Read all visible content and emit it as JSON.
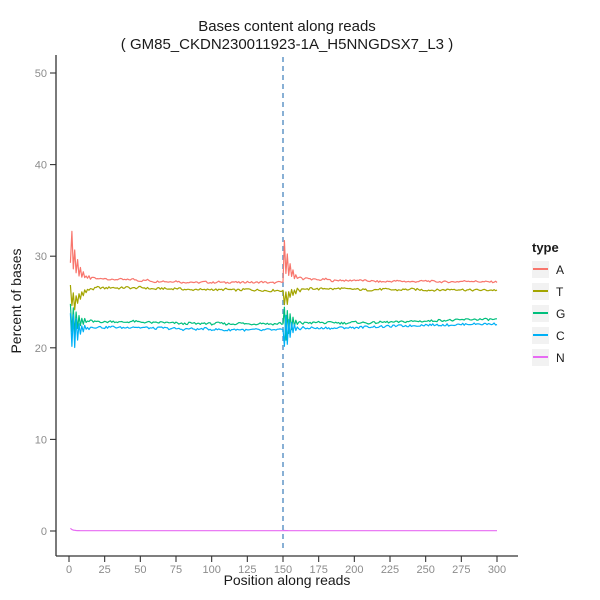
{
  "chart_data": {
    "type": "line",
    "title": "Bases content along reads",
    "subtitle": "( GM85_CKDN230011923-1A_H5NNGDSX7_L3 )",
    "xlabel": "Position along reads",
    "ylabel": "Percent of bases",
    "xlim": [
      0,
      300
    ],
    "ylim": [
      0,
      50
    ],
    "x_ticks": [
      0,
      25,
      50,
      75,
      100,
      125,
      150,
      175,
      200,
      225,
      250,
      275,
      300
    ],
    "y_ticks": [
      0,
      10,
      20,
      30,
      40,
      50
    ],
    "grid": false,
    "legend_title": "type",
    "legend_position": "right",
    "axis_color": "#333333",
    "tick_label_color": "#8C8C8C",
    "vline": {
      "x": 150,
      "style": "dashed",
      "color": "#74A3CE"
    },
    "series": [
      {
        "name": "A",
        "color": "#F8766D",
        "noise": 0.1,
        "points": [
          [
            1,
            29.2
          ],
          [
            2,
            32.8
          ],
          [
            3,
            28.6
          ],
          [
            4,
            30.7
          ],
          [
            5,
            28.2
          ],
          [
            6,
            29.6
          ],
          [
            7,
            27.9
          ],
          [
            8,
            28.8
          ],
          [
            9,
            27.7
          ],
          [
            10,
            28.2
          ],
          [
            11,
            27.6
          ],
          [
            12,
            27.9
          ],
          [
            13,
            27.5
          ],
          [
            14,
            27.8
          ],
          [
            15,
            27.5
          ],
          [
            17,
            27.7
          ],
          [
            20,
            27.5
          ],
          [
            25,
            27.6
          ],
          [
            30,
            27.4
          ],
          [
            35,
            27.5
          ],
          [
            40,
            27.4
          ],
          [
            45,
            27.5
          ],
          [
            50,
            27.3
          ],
          [
            55,
            27.4
          ],
          [
            60,
            27.2
          ],
          [
            65,
            27.3
          ],
          [
            70,
            27.2
          ],
          [
            75,
            27.3
          ],
          [
            80,
            27.1
          ],
          [
            85,
            27.2
          ],
          [
            90,
            27.1
          ],
          [
            95,
            27.2
          ],
          [
            100,
            27.1
          ],
          [
            105,
            27.2
          ],
          [
            110,
            27.1
          ],
          [
            115,
            27.2
          ],
          [
            120,
            27.1
          ],
          [
            125,
            27.2
          ],
          [
            130,
            27.1
          ],
          [
            135,
            27.2
          ],
          [
            140,
            27.1
          ],
          [
            145,
            27.1
          ],
          [
            148,
            27.2
          ],
          [
            150,
            27.1
          ],
          [
            151,
            31.8
          ],
          [
            152,
            28.2
          ],
          [
            153,
            30.2
          ],
          [
            154,
            27.9
          ],
          [
            155,
            29.1
          ],
          [
            156,
            27.7
          ],
          [
            157,
            28.5
          ],
          [
            158,
            27.6
          ],
          [
            159,
            28.0
          ],
          [
            160,
            27.5
          ],
          [
            162,
            27.8
          ],
          [
            164,
            27.5
          ],
          [
            166,
            27.6
          ],
          [
            170,
            27.5
          ],
          [
            175,
            27.4
          ],
          [
            180,
            27.5
          ],
          [
            185,
            27.3
          ],
          [
            190,
            27.4
          ],
          [
            195,
            27.3
          ],
          [
            200,
            27.4
          ],
          [
            210,
            27.3
          ],
          [
            220,
            27.2
          ],
          [
            230,
            27.3
          ],
          [
            240,
            27.2
          ],
          [
            250,
            27.3
          ],
          [
            260,
            27.2
          ],
          [
            270,
            27.2
          ],
          [
            280,
            27.3
          ],
          [
            290,
            27.2
          ],
          [
            300,
            27.2
          ]
        ]
      },
      {
        "name": "T",
        "color": "#A3A500",
        "noise": 0.12,
        "points": [
          [
            1,
            26.8
          ],
          [
            2,
            24.6
          ],
          [
            3,
            26.0
          ],
          [
            4,
            24.2
          ],
          [
            5,
            25.6
          ],
          [
            6,
            24.8
          ],
          [
            7,
            25.9
          ],
          [
            8,
            25.3
          ],
          [
            9,
            26.1
          ],
          [
            10,
            25.8
          ],
          [
            11,
            26.3
          ],
          [
            12,
            26.0
          ],
          [
            13,
            26.4
          ],
          [
            14,
            26.2
          ],
          [
            15,
            26.5
          ],
          [
            17,
            26.4
          ],
          [
            20,
            26.6
          ],
          [
            25,
            26.5
          ],
          [
            30,
            26.6
          ],
          [
            35,
            26.5
          ],
          [
            40,
            26.6
          ],
          [
            45,
            26.5
          ],
          [
            50,
            26.6
          ],
          [
            55,
            26.5
          ],
          [
            60,
            26.4
          ],
          [
            65,
            26.5
          ],
          [
            70,
            26.4
          ],
          [
            75,
            26.5
          ],
          [
            80,
            26.4
          ],
          [
            85,
            26.3
          ],
          [
            90,
            26.4
          ],
          [
            95,
            26.3
          ],
          [
            100,
            26.4
          ],
          [
            105,
            26.3
          ],
          [
            110,
            26.4
          ],
          [
            115,
            26.3
          ],
          [
            120,
            26.3
          ],
          [
            125,
            26.4
          ],
          [
            130,
            26.3
          ],
          [
            135,
            26.3
          ],
          [
            140,
            26.2
          ],
          [
            145,
            26.3
          ],
          [
            148,
            26.2
          ],
          [
            150,
            26.3
          ],
          [
            151,
            24.6
          ],
          [
            152,
            26.1
          ],
          [
            153,
            24.8
          ],
          [
            154,
            26.2
          ],
          [
            155,
            25.4
          ],
          [
            156,
            26.4
          ],
          [
            157,
            25.8
          ],
          [
            158,
            26.3
          ],
          [
            159,
            26.0
          ],
          [
            160,
            26.5
          ],
          [
            162,
            26.2
          ],
          [
            164,
            26.5
          ],
          [
            166,
            26.3
          ],
          [
            170,
            26.5
          ],
          [
            175,
            26.4
          ],
          [
            180,
            26.5
          ],
          [
            185,
            26.4
          ],
          [
            190,
            26.5
          ],
          [
            195,
            26.4
          ],
          [
            200,
            26.4
          ],
          [
            210,
            26.3
          ],
          [
            220,
            26.4
          ],
          [
            230,
            26.3
          ],
          [
            240,
            26.4
          ],
          [
            250,
            26.3
          ],
          [
            260,
            26.3
          ],
          [
            270,
            26.4
          ],
          [
            280,
            26.3
          ],
          [
            290,
            26.3
          ],
          [
            300,
            26.3
          ]
        ]
      },
      {
        "name": "G",
        "color": "#00BF7D",
        "noise": 0.12,
        "points": [
          [
            1,
            24.9
          ],
          [
            2,
            21.8
          ],
          [
            3,
            24.4
          ],
          [
            4,
            21.4
          ],
          [
            5,
            23.9
          ],
          [
            6,
            22.1
          ],
          [
            7,
            23.5
          ],
          [
            8,
            22.4
          ],
          [
            9,
            23.2
          ],
          [
            10,
            22.6
          ],
          [
            11,
            23.1
          ],
          [
            12,
            22.7
          ],
          [
            13,
            23.0
          ],
          [
            14,
            22.8
          ],
          [
            15,
            23.0
          ],
          [
            17,
            22.8
          ],
          [
            20,
            22.9
          ],
          [
            25,
            22.8
          ],
          [
            30,
            22.9
          ],
          [
            35,
            22.8
          ],
          [
            40,
            22.8
          ],
          [
            45,
            22.9
          ],
          [
            50,
            22.8
          ],
          [
            55,
            22.8
          ],
          [
            60,
            22.7
          ],
          [
            65,
            22.8
          ],
          [
            70,
            22.7
          ],
          [
            75,
            22.7
          ],
          [
            80,
            22.6
          ],
          [
            85,
            22.7
          ],
          [
            90,
            22.6
          ],
          [
            95,
            22.7
          ],
          [
            100,
            22.6
          ],
          [
            105,
            22.7
          ],
          [
            110,
            22.6
          ],
          [
            115,
            22.6
          ],
          [
            120,
            22.7
          ],
          [
            125,
            22.6
          ],
          [
            130,
            22.6
          ],
          [
            135,
            22.7
          ],
          [
            140,
            22.6
          ],
          [
            145,
            22.6
          ],
          [
            148,
            22.7
          ],
          [
            150,
            22.6
          ],
          [
            151,
            24.4
          ],
          [
            152,
            20.9
          ],
          [
            153,
            24.1
          ],
          [
            154,
            21.5
          ],
          [
            155,
            23.6
          ],
          [
            156,
            22.0
          ],
          [
            157,
            23.3
          ],
          [
            158,
            22.3
          ],
          [
            159,
            23.0
          ],
          [
            160,
            22.5
          ],
          [
            162,
            22.9
          ],
          [
            164,
            22.6
          ],
          [
            166,
            22.8
          ],
          [
            170,
            22.7
          ],
          [
            175,
            22.8
          ],
          [
            180,
            22.7
          ],
          [
            185,
            22.8
          ],
          [
            190,
            22.7
          ],
          [
            195,
            22.7
          ],
          [
            200,
            22.8
          ],
          [
            210,
            22.7
          ],
          [
            220,
            22.8
          ],
          [
            230,
            22.8
          ],
          [
            240,
            22.9
          ],
          [
            250,
            22.9
          ],
          [
            260,
            23.0
          ],
          [
            270,
            23.0
          ],
          [
            280,
            23.1
          ],
          [
            290,
            23.1
          ],
          [
            300,
            23.1
          ]
        ]
      },
      {
        "name": "C",
        "color": "#00B0F6",
        "noise": 0.12,
        "points": [
          [
            1,
            23.8
          ],
          [
            2,
            20.2
          ],
          [
            3,
            23.5
          ],
          [
            4,
            20.0
          ],
          [
            5,
            23.1
          ],
          [
            6,
            20.8
          ],
          [
            7,
            22.7
          ],
          [
            8,
            21.4
          ],
          [
            9,
            22.5
          ],
          [
            10,
            21.8
          ],
          [
            11,
            22.4
          ],
          [
            12,
            22.0
          ],
          [
            13,
            22.3
          ],
          [
            14,
            22.1
          ],
          [
            15,
            22.3
          ],
          [
            17,
            22.2
          ],
          [
            20,
            22.3
          ],
          [
            25,
            22.2
          ],
          [
            30,
            22.3
          ],
          [
            35,
            22.2
          ],
          [
            40,
            22.2
          ],
          [
            45,
            22.3
          ],
          [
            50,
            22.2
          ],
          [
            55,
            22.2
          ],
          [
            60,
            22.1
          ],
          [
            65,
            22.2
          ],
          [
            70,
            22.1
          ],
          [
            75,
            22.1
          ],
          [
            80,
            22.0
          ],
          [
            85,
            22.1
          ],
          [
            90,
            22.0
          ],
          [
            95,
            22.1
          ],
          [
            100,
            22.0
          ],
          [
            105,
            22.0
          ],
          [
            110,
            21.9
          ],
          [
            115,
            22.0
          ],
          [
            120,
            22.0
          ],
          [
            125,
            21.9
          ],
          [
            130,
            22.0
          ],
          [
            135,
            21.9
          ],
          [
            140,
            22.0
          ],
          [
            145,
            21.9
          ],
          [
            148,
            22.0
          ],
          [
            150,
            21.9
          ],
          [
            151,
            20.1
          ],
          [
            152,
            23.6
          ],
          [
            153,
            20.5
          ],
          [
            154,
            23.1
          ],
          [
            155,
            21.1
          ],
          [
            156,
            22.8
          ],
          [
            157,
            21.6
          ],
          [
            158,
            22.5
          ],
          [
            159,
            21.9
          ],
          [
            160,
            22.3
          ],
          [
            162,
            22.0
          ],
          [
            164,
            22.2
          ],
          [
            166,
            22.1
          ],
          [
            170,
            22.2
          ],
          [
            175,
            22.1
          ],
          [
            180,
            22.2
          ],
          [
            185,
            22.1
          ],
          [
            190,
            22.2
          ],
          [
            195,
            22.2
          ],
          [
            200,
            22.2
          ],
          [
            210,
            22.3
          ],
          [
            220,
            22.3
          ],
          [
            230,
            22.4
          ],
          [
            240,
            22.4
          ],
          [
            250,
            22.5
          ],
          [
            260,
            22.5
          ],
          [
            270,
            22.5
          ],
          [
            280,
            22.6
          ],
          [
            290,
            22.6
          ],
          [
            300,
            22.6
          ]
        ]
      },
      {
        "name": "N",
        "color": "#E76BF3",
        "noise": 0,
        "points": [
          [
            1,
            0.3
          ],
          [
            2,
            0.15
          ],
          [
            3,
            0.1
          ],
          [
            5,
            0.05
          ],
          [
            10,
            0.03
          ],
          [
            25,
            0.03
          ],
          [
            50,
            0.03
          ],
          [
            75,
            0.03
          ],
          [
            100,
            0.03
          ],
          [
            125,
            0.03
          ],
          [
            150,
            0.03
          ],
          [
            151,
            0.05
          ],
          [
            155,
            0.03
          ],
          [
            175,
            0.03
          ],
          [
            200,
            0.03
          ],
          [
            225,
            0.03
          ],
          [
            250,
            0.03
          ],
          [
            275,
            0.03
          ],
          [
            300,
            0.03
          ]
        ]
      }
    ]
  }
}
